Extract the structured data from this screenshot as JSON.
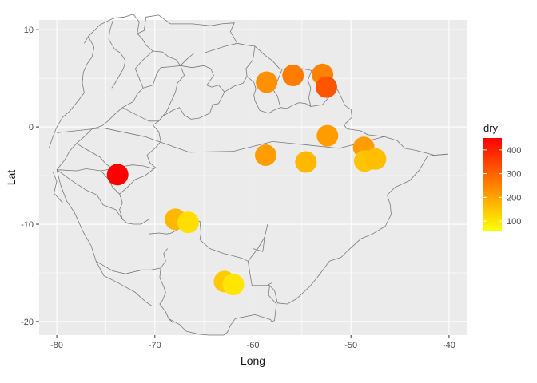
{
  "chart_data": {
    "type": "scatter",
    "xlabel": "Long",
    "ylabel": "Lat",
    "xlim": [
      -81.8,
      -38.2
    ],
    "ylim": [
      -21.4,
      11.0
    ],
    "x_ticks": [
      -80,
      -70,
      -60,
      -50,
      -40
    ],
    "x_tick_labels": [
      "-80",
      "-70",
      "-60",
      "-50",
      "-40"
    ],
    "y_ticks": [
      -20,
      -10,
      0,
      10
    ],
    "y_tick_labels": [
      "-20",
      "-10",
      "0",
      "10"
    ],
    "grid": true,
    "background": "#ebebeb",
    "grid_color": "#ffffff",
    "map_outline_color": "#7a7a7a",
    "legend": {
      "title": "dry",
      "position": "right",
      "range": [
        60,
        450
      ],
      "ticks": [
        100,
        200,
        300,
        400
      ],
      "tick_labels": [
        "100",
        "200",
        "300",
        "400"
      ],
      "low_color": "#ffff00",
      "high_color": "#ff0000"
    },
    "points": [
      {
        "x": -73.8,
        "y": -4.9,
        "dry": 450
      },
      {
        "x": -58.6,
        "y": 4.6,
        "dry": 230
      },
      {
        "x": -55.9,
        "y": 5.3,
        "dry": 260
      },
      {
        "x": -52.9,
        "y": 5.4,
        "dry": 250
      },
      {
        "x": -52.5,
        "y": 4.1,
        "dry": 320
      },
      {
        "x": -52.4,
        "y": -0.9,
        "dry": 210
      },
      {
        "x": -58.7,
        "y": -2.9,
        "dry": 210
      },
      {
        "x": -54.6,
        "y": -3.6,
        "dry": 170
      },
      {
        "x": -48.7,
        "y": -2.1,
        "dry": 210
      },
      {
        "x": -48.6,
        "y": -3.5,
        "dry": 150
      },
      {
        "x": -47.5,
        "y": -3.3,
        "dry": 160
      },
      {
        "x": -67.9,
        "y": -9.5,
        "dry": 170
      },
      {
        "x": -66.6,
        "y": -9.8,
        "dry": 110
      },
      {
        "x": -62.9,
        "y": -15.9,
        "dry": 140
      },
      {
        "x": -62.0,
        "y": -16.2,
        "dry": 100
      }
    ]
  }
}
